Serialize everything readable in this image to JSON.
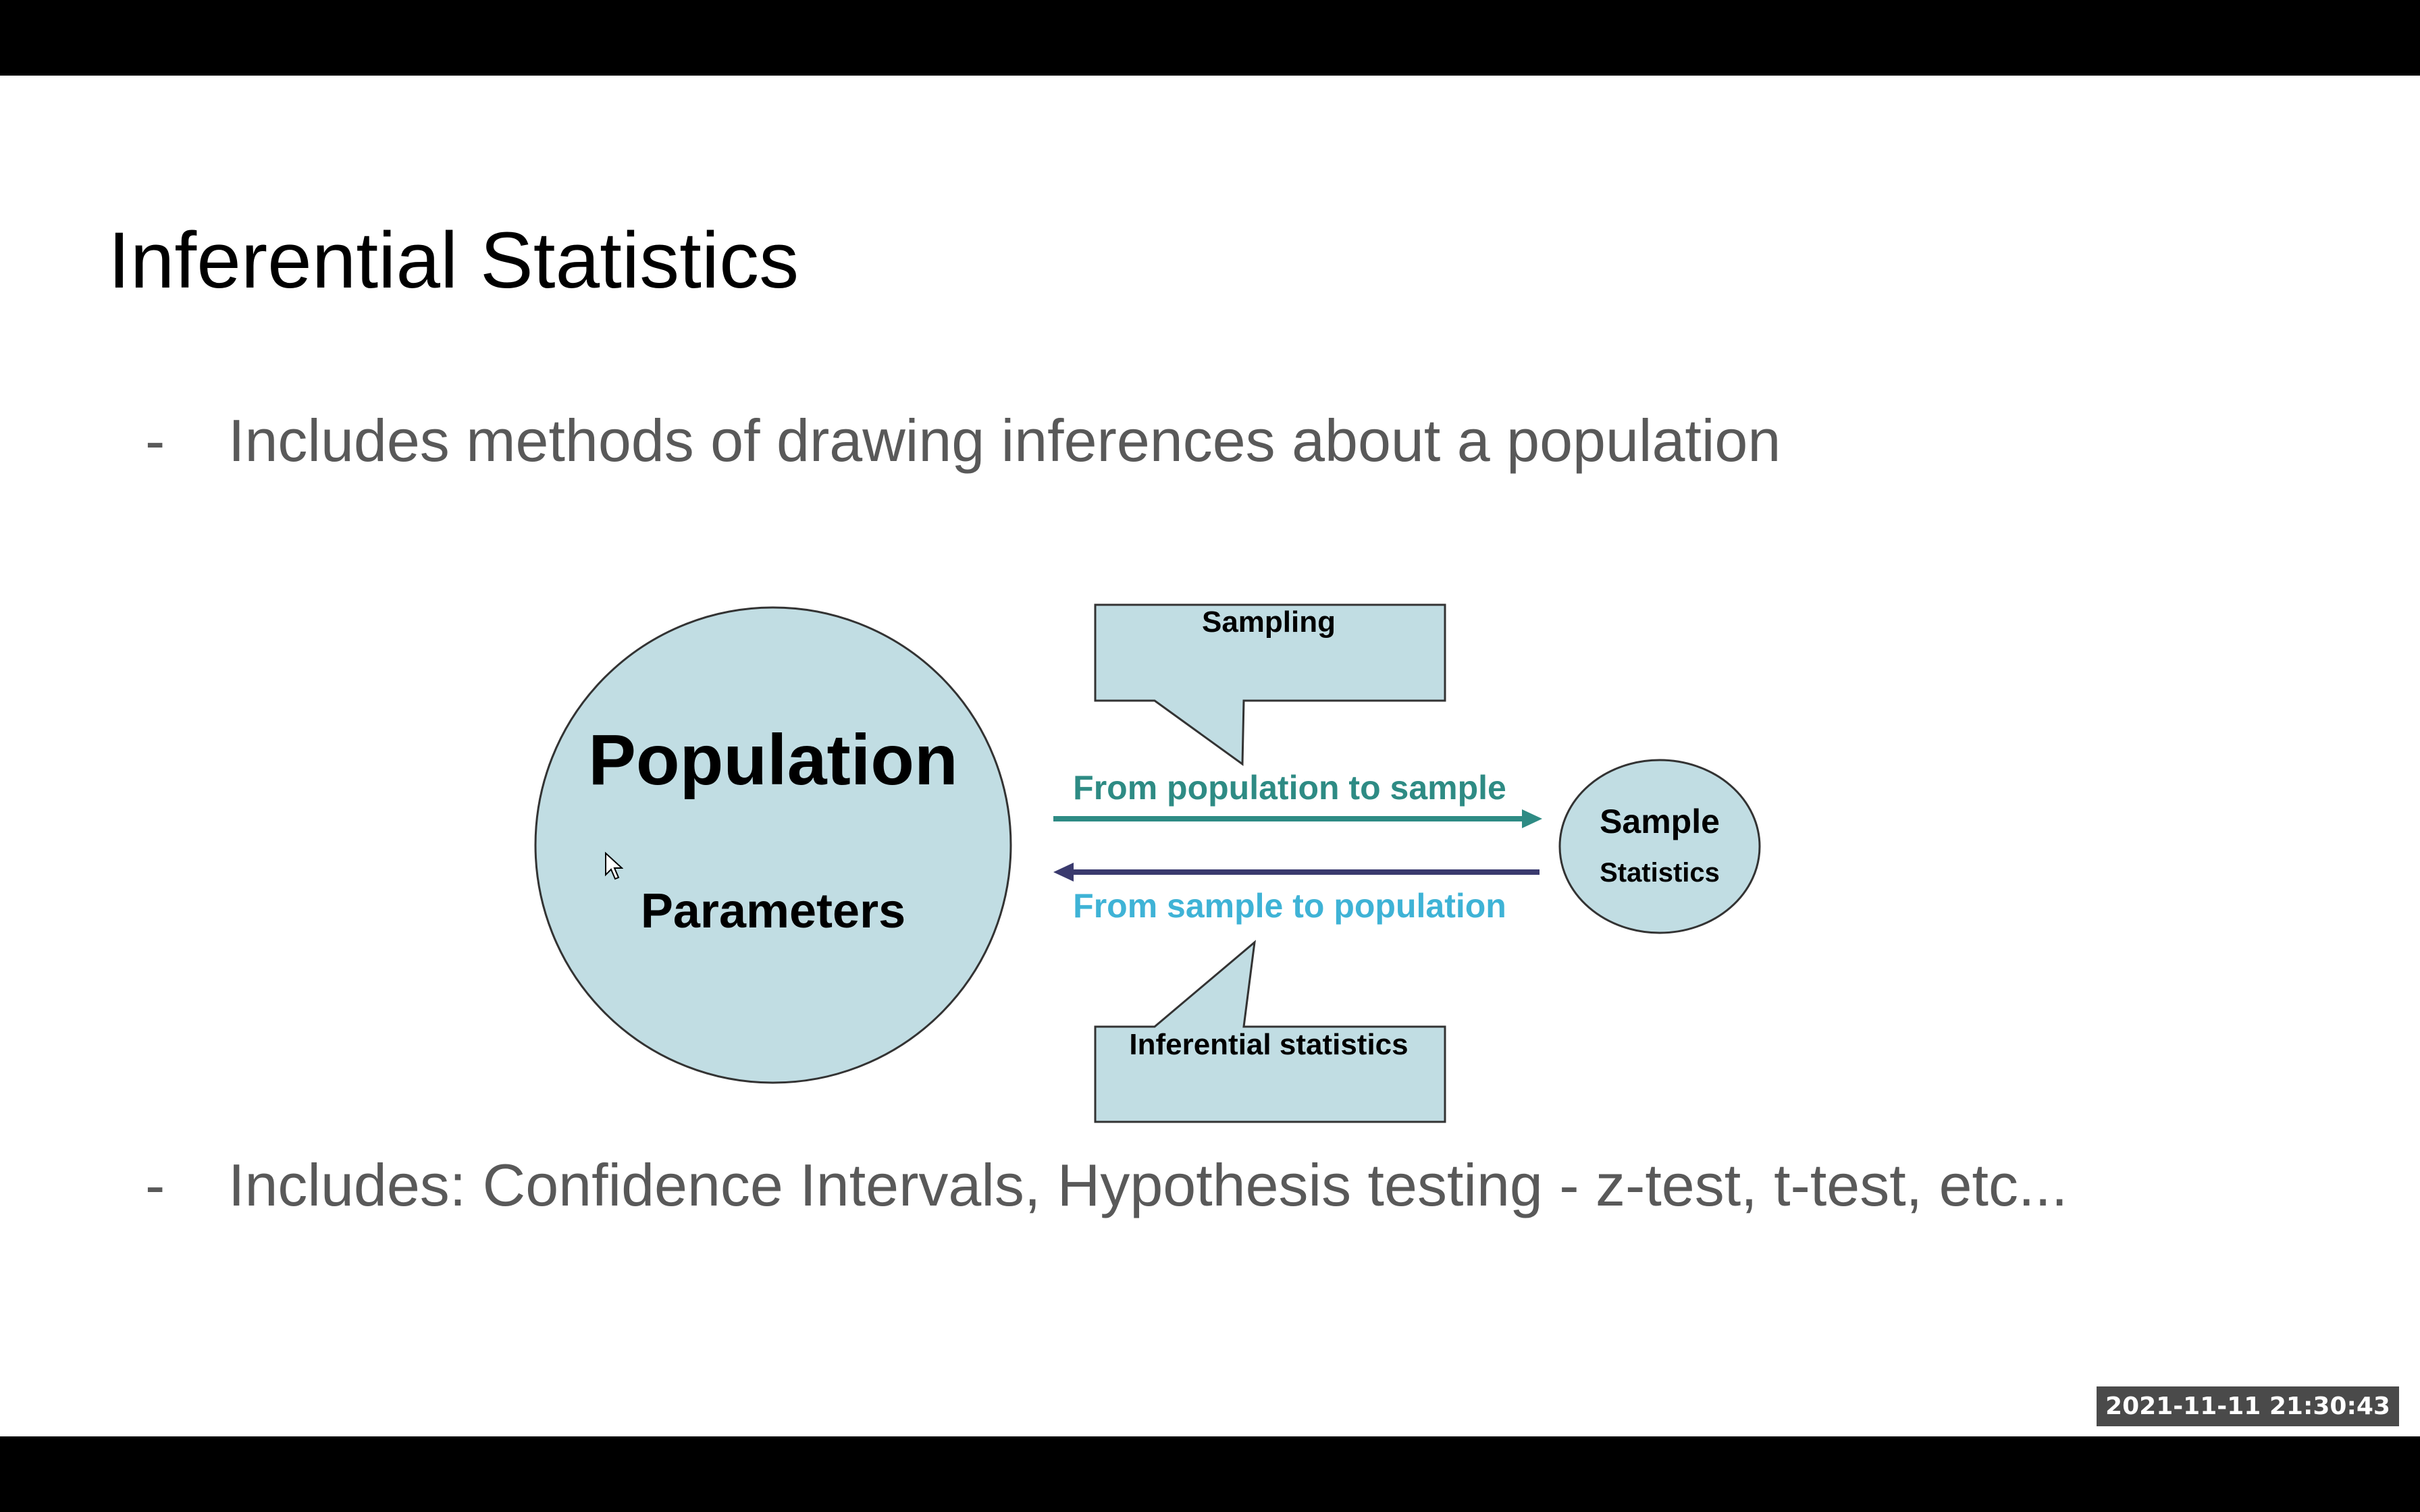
{
  "slide": {
    "title": "Inferential Statistics",
    "bullets": [
      {
        "dash": "-",
        "text": "Includes methods of drawing inferences about a population"
      },
      {
        "dash": "-",
        "text": "Includes: Confidence Intervals, Hypothesis testing - z-test, t-test, etc..."
      }
    ]
  },
  "diagram": {
    "population_label": "Population",
    "parameters_label": "Parameters",
    "sample_label": "Sample",
    "statistics_label": "Statistics",
    "sampling_callout": "Sampling",
    "inferential_callout": "Inferential statistics",
    "forward_arrow_label": "From population to sample",
    "backward_arrow_label": "From sample to population",
    "colors": {
      "shape_fill": "#c1dde3",
      "forward_arrow": "#2e8b84",
      "backward_arrow": "#3a3a6e",
      "forward_text": "#2e8b84",
      "backward_text": "#3fb3d6"
    }
  },
  "overlay": {
    "timestamp": "2021-11-11  21:30:43"
  }
}
